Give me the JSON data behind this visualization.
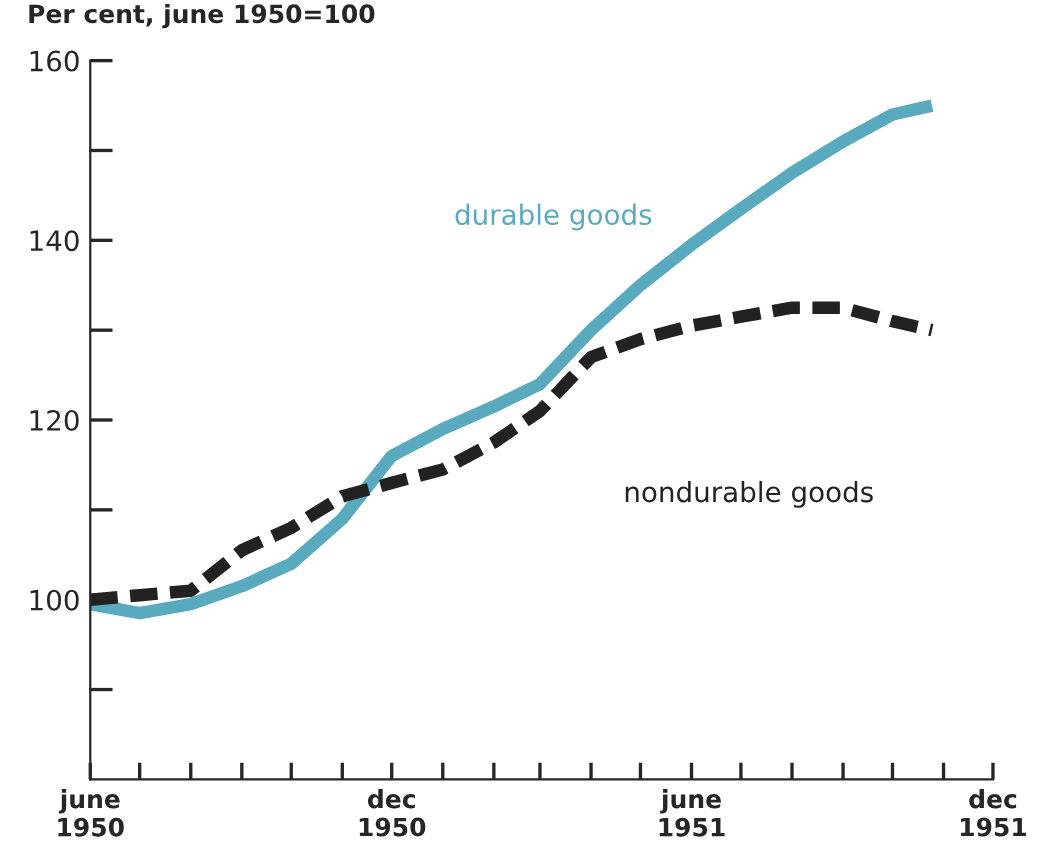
{
  "chart_data": {
    "type": "line",
    "ylabel": "Per cent, june 1950=100",
    "xlim": [
      "1950-06",
      "1951-12"
    ],
    "xticks": [
      {
        "value": "1950-06",
        "label": "june\n1950"
      },
      {
        "value": "1950-07",
        "label": null
      },
      {
        "value": "1950-08",
        "label": null
      },
      {
        "value": "1950-09",
        "label": null
      },
      {
        "value": "1950-10",
        "label": null
      },
      {
        "value": "1950-11",
        "label": null
      },
      {
        "value": "1950-12",
        "label": "dec\n1950"
      },
      {
        "value": "1951-01",
        "label": null
      },
      {
        "value": "1951-02",
        "label": null
      },
      {
        "value": "1951-03",
        "label": null
      },
      {
        "value": "1951-04",
        "label": null
      },
      {
        "value": "1951-05",
        "label": null
      },
      {
        "value": "1951-06",
        "label": "june\n1951"
      },
      {
        "value": "1951-07",
        "label": null
      },
      {
        "value": "1951-08",
        "label": null
      },
      {
        "value": "1951-09",
        "label": null
      },
      {
        "value": "1951-10",
        "label": null
      },
      {
        "value": "1951-11",
        "label": null
      },
      {
        "value": "1951-12",
        "label": "dec\n1951"
      }
    ],
    "ylim": [
      80,
      160
    ],
    "yticks": [
      {
        "value": 90,
        "label": null
      },
      100,
      {
        "value": 110,
        "label": null
      },
      120,
      {
        "value": 130,
        "label": null
      },
      140,
      {
        "value": 150,
        "label": null
      },
      160
    ],
    "grid": false,
    "legend": false,
    "series": [
      {
        "name": "durable goods",
        "color": "#5aaabf",
        "line_style": "solid",
        "x": [
          "1950-06",
          "1950-07",
          "1950-08",
          "1950-09",
          "1950-10",
          "1950-11",
          "1950-12",
          "1951-01",
          "1951-02",
          "1951-03",
          "1951-04",
          "1951-05",
          "1951-06",
          "1951-07",
          "1951-08",
          "1951-09",
          "1951-10",
          "1951-10-25"
        ],
        "values": [
          99.5,
          98.5,
          99.5,
          101.5,
          104,
          109,
          116,
          119,
          121.5,
          124,
          130,
          135,
          139.5,
          143.5,
          147.5,
          151,
          154,
          155
        ]
      },
      {
        "name": "nondurable goods",
        "color": "#222222",
        "line_style": "dashed",
        "x": [
          "1950-06",
          "1950-07",
          "1950-08",
          "1950-09",
          "1950-10",
          "1950-11",
          "1950-12",
          "1951-01",
          "1951-02",
          "1951-03",
          "1951-04",
          "1951-05",
          "1951-06",
          "1951-07",
          "1951-08",
          "1951-09",
          "1951-10",
          "1951-10-25"
        ],
        "values": [
          100,
          100.5,
          101,
          105.5,
          108,
          111.5,
          113,
          114.5,
          117.5,
          121,
          127,
          129,
          130.5,
          131.5,
          132.5,
          132.5,
          131,
          130
        ]
      }
    ]
  }
}
